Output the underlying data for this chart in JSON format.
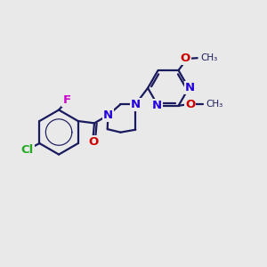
{
  "bg_color": "#e9e9e9",
  "bond_color": "#1a1a5e",
  "bond_width": 1.6,
  "atom_colors": {
    "N": "#2200dd",
    "O": "#cc0000",
    "Cl": "#22aa22",
    "F": "#cc00cc"
  },
  "font_size": 9.5,
  "methoxy_label": "O",
  "methyl_label": "CH₃"
}
